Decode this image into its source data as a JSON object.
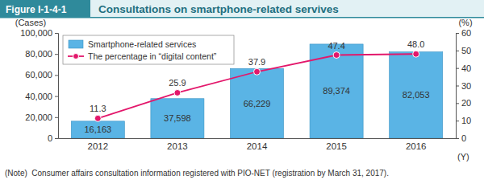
{
  "chart_data": {
    "type": "bar",
    "figure_label": "Figure I-1-4-1",
    "title": "Consultations on smartphone-related servives",
    "note": "(Note)  Consumer affairs consultation information registered with PIO-NET (registration by March 31, 2017).",
    "y_label": "(Cases)",
    "y2_label": "(%)",
    "x_label": "(Y)",
    "categories": [
      "2012",
      "2013",
      "2014",
      "2015",
      "2016"
    ],
    "series": [
      {
        "name": "Smartphone-related services",
        "type": "bar",
        "color": "#5ab4e5",
        "values": [
          16163,
          37598,
          66229,
          89374,
          82053
        ],
        "value_labels": [
          "16,163",
          "37,598",
          "66,229",
          "89,374",
          "82,053"
        ]
      },
      {
        "name": "The percentage in “digital content”",
        "type": "line",
        "axis": "y2",
        "color": "#e3176b",
        "marker": "circle",
        "line_style": "solid",
        "values": [
          11.3,
          25.9,
          37.9,
          47.4,
          48.0
        ],
        "value_labels": [
          "11.3",
          "25.9",
          "37.9",
          "47.4",
          "48.0"
        ]
      }
    ],
    "ylim": [
      0,
      100000
    ],
    "yticks": [
      0,
      {
        "value": 20000,
        "label": "20,000"
      },
      {
        "value": 40000,
        "label": "40,000"
      },
      {
        "value": 60000,
        "label": "60,000"
      },
      {
        "value": 80000,
        "label": "80,000"
      },
      {
        "value": 100000,
        "label": "100,000"
      }
    ],
    "y2lim": [
      0,
      60
    ],
    "y2ticks": [
      0,
      10,
      20,
      30,
      40,
      50,
      60
    ],
    "data_labels": true,
    "legend": "upper left",
    "grid": false
  }
}
